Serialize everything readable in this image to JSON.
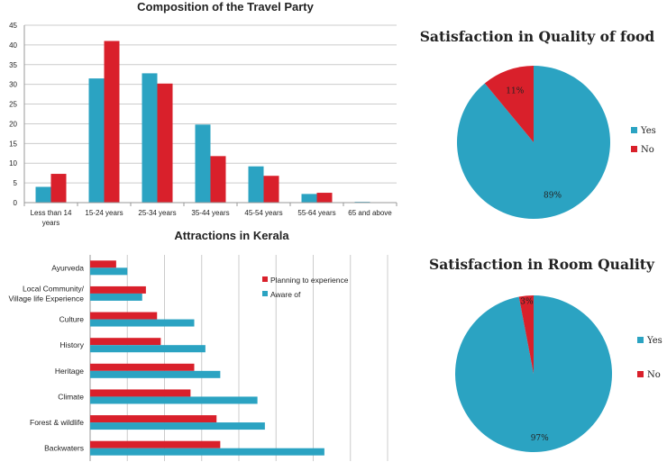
{
  "colors": {
    "blue": "#2ba3c2",
    "red": "#d9202b",
    "grid": "#cccccc",
    "axis": "#999999",
    "text": "#222222"
  },
  "chart_data": [
    {
      "type": "bar",
      "title": "Composition of the Travel Party",
      "categories": [
        [
          "Less than 14",
          "years"
        ],
        [
          "15-24 years"
        ],
        [
          "25-34 years"
        ],
        [
          "35-44 years"
        ],
        [
          "45-54 years"
        ],
        [
          "55-64 years"
        ],
        [
          "65 and above"
        ]
      ],
      "series": [
        {
          "color": "blue",
          "values": [
            4,
            31.5,
            32.8,
            19.8,
            9.2,
            2.2,
            0.2
          ]
        },
        {
          "color": "red",
          "values": [
            7.3,
            41,
            30.2,
            11.8,
            6.8,
            2.5,
            0.1
          ]
        }
      ],
      "yticks": [
        "0",
        "5",
        "10",
        "15",
        "20",
        "25",
        "30",
        "35",
        "40",
        "45"
      ],
      "ylim": [
        0,
        45
      ],
      "grid": true
    },
    {
      "type": "bar",
      "orientation": "horizontal",
      "title": "Attractions in Kerala",
      "categories": [
        [
          "Ayurveda"
        ],
        [
          "Local Community/",
          "Village life  Experience"
        ],
        [
          "Culture"
        ],
        [
          "History"
        ],
        [
          "Heritage"
        ],
        [
          "Climate"
        ],
        [
          "Forest & wildlife"
        ],
        [
          "Backwaters"
        ]
      ],
      "series": [
        {
          "name": "Planning to experience",
          "color": "red",
          "values": [
            7,
            15,
            18,
            19,
            28,
            27,
            34,
            35
          ]
        },
        {
          "name": "Aware of",
          "color": "blue",
          "values": [
            10,
            14,
            28,
            31,
            35,
            45,
            47,
            63
          ]
        }
      ],
      "xlim": [
        0,
        80
      ],
      "grid": true,
      "legend_position": "top-right"
    },
    {
      "type": "pie",
      "title": "Satisfaction in Quality of  food",
      "slices": [
        {
          "label": "Yes",
          "value": 89,
          "display": "89%",
          "color": "blue"
        },
        {
          "label": "No",
          "value": 11,
          "display": "11%",
          "color": "red"
        }
      ],
      "legend_position": "right"
    },
    {
      "type": "pie",
      "title": "Satisfaction in Room Quality",
      "slices": [
        {
          "label": "Yes",
          "value": 97,
          "display": "97%",
          "color": "blue"
        },
        {
          "label": "No",
          "value": 3,
          "display": "3%",
          "color": "red"
        }
      ],
      "legend_position": "right"
    }
  ]
}
